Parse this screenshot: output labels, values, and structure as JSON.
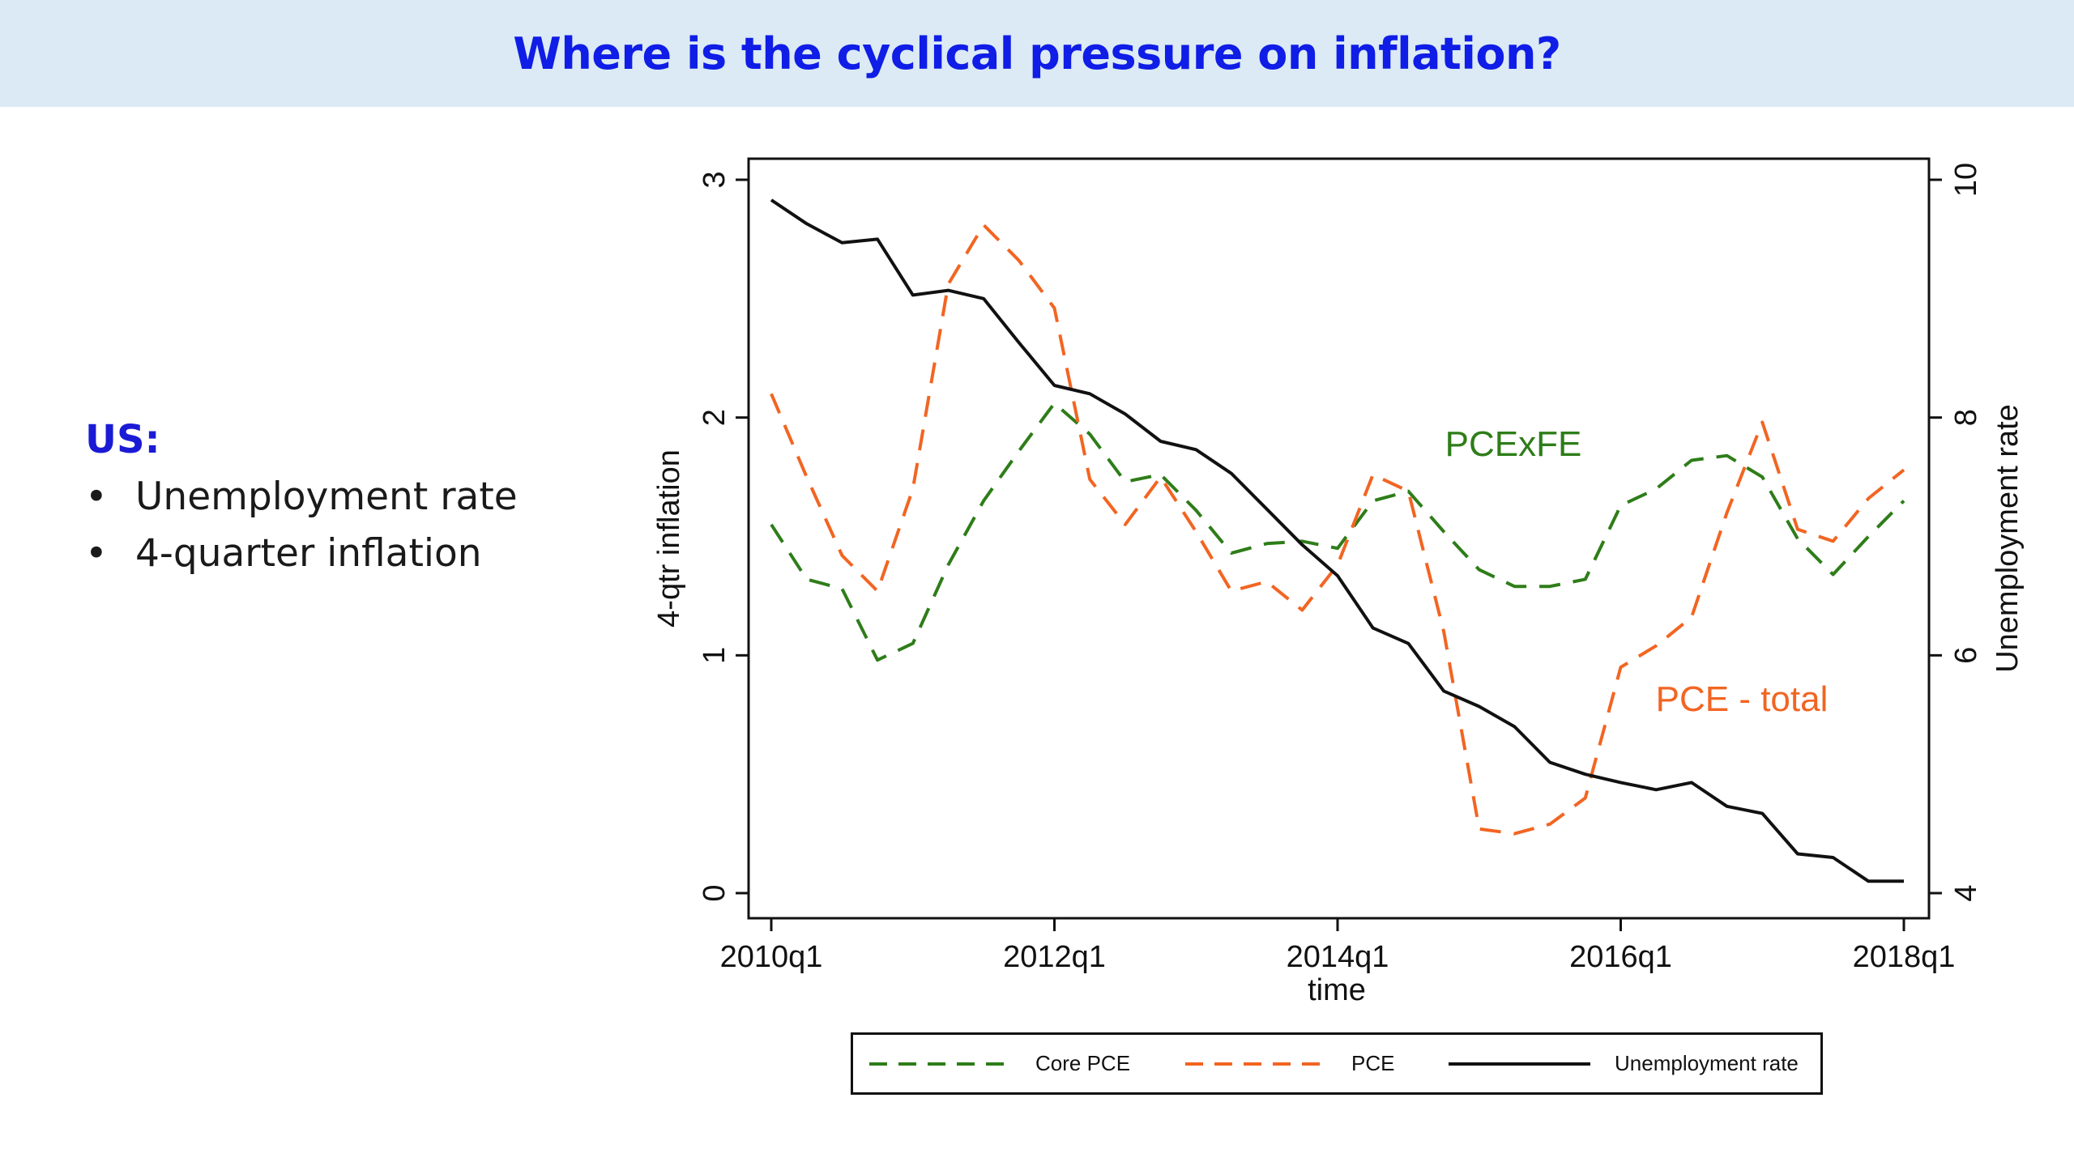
{
  "slide": {
    "title": "Where is the cyclical pressure on inflation?",
    "region_label": "US:",
    "bullets": [
      "Unemployment rate",
      "4-quarter inflation"
    ]
  },
  "colors": {
    "title": "#0f1de6",
    "title_band": "#dbeaf4",
    "core_pce": "#2e7d19",
    "pce": "#f26522",
    "unemployment": "#111111"
  },
  "chart_data": {
    "type": "line",
    "xlabel": "time",
    "ylabel_left": "4-qtr inflation",
    "ylabel_right": "Unemployment rate",
    "ylim_left": [
      0,
      3
    ],
    "ylim_right": [
      4,
      10
    ],
    "yticks_left": [
      "0",
      "1",
      "2",
      "3"
    ],
    "yticks_right": [
      "4",
      "6",
      "8",
      "10"
    ],
    "xticks": [
      "2010q1",
      "2012q1",
      "2014q1",
      "2016q1",
      "2018q1"
    ],
    "grid": false,
    "legend_placement": "bottom",
    "x": [
      "2010q1",
      "2010q2",
      "2010q3",
      "2010q4",
      "2011q1",
      "2011q2",
      "2011q3",
      "2011q4",
      "2012q1",
      "2012q2",
      "2012q3",
      "2012q4",
      "2013q1",
      "2013q2",
      "2013q3",
      "2013q4",
      "2014q1",
      "2014q2",
      "2014q3",
      "2014q4",
      "2015q1",
      "2015q2",
      "2015q3",
      "2015q4",
      "2016q1",
      "2016q2",
      "2016q3",
      "2016q4",
      "2017q1",
      "2017q2",
      "2017q3",
      "2017q4",
      "2018q1"
    ],
    "series": [
      {
        "name": "Core PCE",
        "axis": "left",
        "style": "dashed",
        "color": "#2e7d19",
        "values": [
          1.55,
          1.32,
          1.28,
          0.98,
          1.05,
          1.38,
          1.65,
          1.86,
          2.06,
          1.93,
          1.73,
          1.76,
          1.61,
          1.43,
          1.47,
          1.48,
          1.45,
          1.65,
          1.69,
          1.52,
          1.36,
          1.29,
          1.29,
          1.32,
          1.63,
          1.7,
          1.82,
          1.84,
          1.75,
          1.49,
          1.34,
          1.5,
          1.65
        ]
      },
      {
        "name": "PCE",
        "axis": "left",
        "style": "dashed",
        "color": "#f26522",
        "values": [
          2.1,
          1.75,
          1.42,
          1.27,
          1.7,
          2.56,
          2.81,
          2.66,
          2.46,
          1.74,
          1.55,
          1.75,
          1.52,
          1.27,
          1.31,
          1.19,
          1.38,
          1.76,
          1.69,
          1.1,
          0.27,
          0.25,
          0.29,
          0.4,
          0.95,
          1.04,
          1.16,
          1.6,
          1.98,
          1.53,
          1.48,
          1.66,
          1.78
        ]
      },
      {
        "name": "Unemployment rate",
        "axis": "right",
        "style": "solid",
        "color": "#111111",
        "values": [
          9.83,
          9.63,
          9.47,
          9.5,
          9.03,
          9.07,
          9.0,
          8.63,
          8.27,
          8.2,
          8.03,
          7.8,
          7.73,
          7.53,
          7.23,
          6.93,
          6.67,
          6.23,
          6.1,
          5.7,
          5.57,
          5.4,
          5.1,
          5.0,
          4.93,
          4.87,
          4.93,
          4.73,
          4.67,
          4.33,
          4.3,
          4.1,
          4.1
        ]
      }
    ],
    "annotations": [
      {
        "text": "PCExFE",
        "color": "#2e7d19"
      },
      {
        "text": "PCE - total",
        "color": "#f26522"
      }
    ]
  }
}
